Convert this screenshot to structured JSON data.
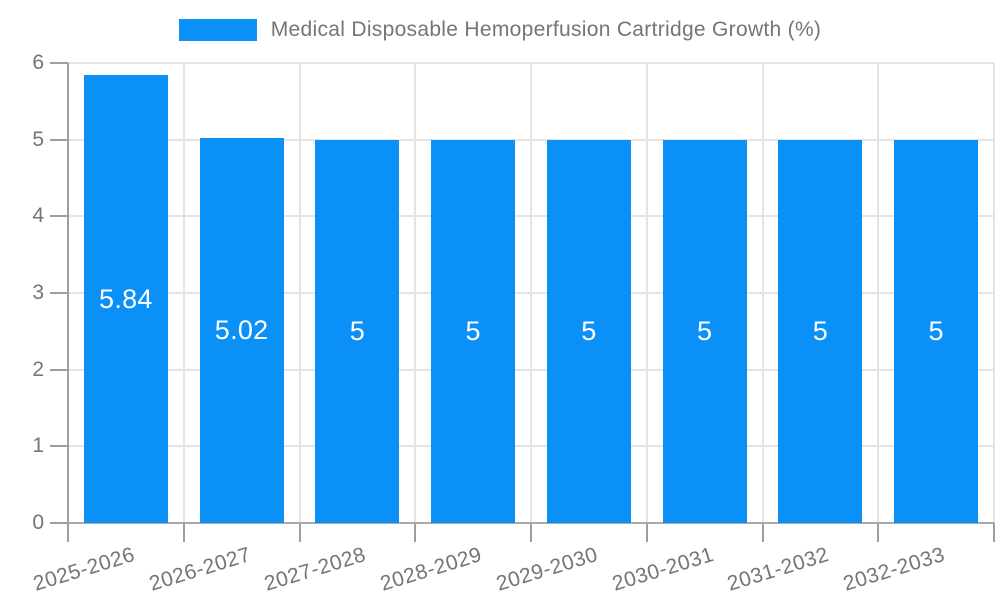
{
  "chart_data": {
    "type": "bar",
    "title": "Medical Disposable Hemoperfusion Cartridge Growth (%)",
    "categories": [
      "2025-2026",
      "2026-2027",
      "2027-2028",
      "2028-2029",
      "2029-2030",
      "2030-2031",
      "2031-2032",
      "2032-2033"
    ],
    "values": [
      5.84,
      5.02,
      5,
      5,
      5,
      5,
      5,
      5
    ],
    "value_labels": [
      "5.84",
      "5.02",
      "5",
      "5",
      "5",
      "5",
      "5",
      "5"
    ],
    "xlabel": "",
    "ylabel": "",
    "ylim": [
      0,
      6
    ],
    "yticks": [
      "0",
      "1",
      "2",
      "3",
      "4",
      "5",
      "6"
    ],
    "grid": true,
    "legend_position": "top",
    "value_label_position": "inside-center",
    "colors": {
      "bar": "#0b90f8",
      "value_label": "#ffffff",
      "axis": "#9e9e9e",
      "gridline": "#e4e4e4",
      "text": "#757575",
      "background": "#ffffff"
    }
  }
}
